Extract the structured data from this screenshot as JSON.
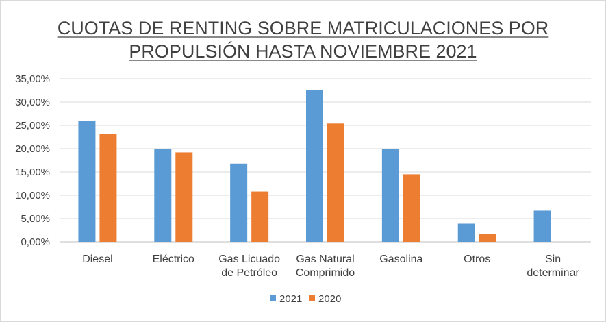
{
  "chart_data": {
    "type": "bar",
    "title": [
      "CUOTAS DE RENTING SOBRE MATRICULACIONES POR",
      "PROPULSIÓN HASTA NOVIEMBRE 2021"
    ],
    "categories": [
      [
        "Diesel"
      ],
      [
        "Eléctrico"
      ],
      [
        "Gas Licuado",
        "de Petróleo"
      ],
      [
        "Gas Natural",
        "Comprimido"
      ],
      [
        "Gasolina"
      ],
      [
        "Otros"
      ],
      [
        "Sin",
        "determinar"
      ]
    ],
    "series": [
      {
        "name": "2021",
        "color": "#5b9bd5",
        "values": [
          25.9,
          19.9,
          16.8,
          32.5,
          20.0,
          3.9,
          6.7
        ]
      },
      {
        "name": "2020",
        "color": "#ed7d31",
        "values": [
          23.1,
          19.2,
          10.8,
          25.4,
          14.5,
          1.7,
          null
        ]
      }
    ],
    "ylim": [
      0,
      35
    ],
    "yticks": [
      "0,00%",
      "5,00%",
      "10,00%",
      "15,00%",
      "20,00%",
      "25,00%",
      "30,00%",
      "35,00%"
    ],
    "grid": true,
    "legend_position": "bottom"
  }
}
